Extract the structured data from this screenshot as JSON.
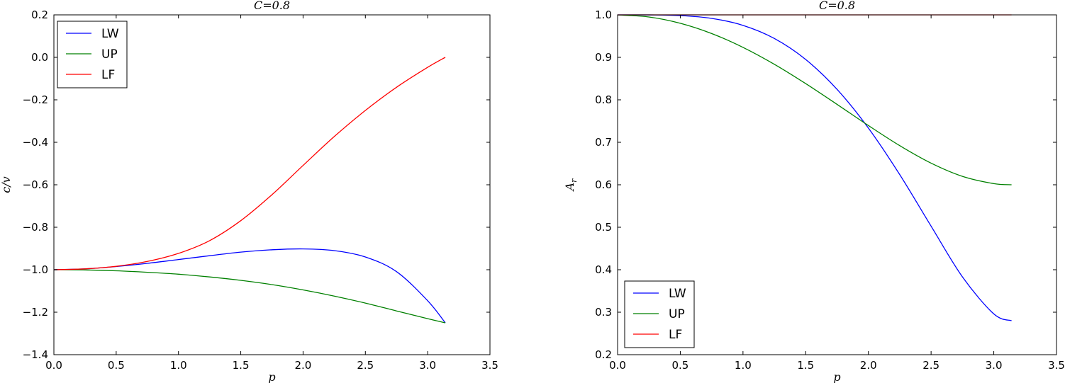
{
  "chart_data": [
    {
      "type": "line",
      "title": "C=0.8",
      "xlabel": "p",
      "ylabel": "c/v",
      "xlim": [
        0,
        3.5
      ],
      "ylim": [
        -1.4,
        0.2
      ],
      "xticks": [
        "0.0",
        "0.5",
        "1.0",
        "1.5",
        "2.0",
        "2.5",
        "3.0",
        "3.5"
      ],
      "yticks": [
        "0.2",
        "0.0",
        "−0.2",
        "−0.4",
        "−0.6",
        "−0.8",
        "−1.0",
        "−1.2",
        "−1.4"
      ],
      "ytick_values": [
        0.2,
        0.0,
        -0.2,
        -0.4,
        -0.6,
        -0.8,
        -1.0,
        -1.2,
        -1.4
      ],
      "grid": false,
      "legend_position": "top-left",
      "x": [
        0,
        0.25,
        0.5,
        0.75,
        1.0,
        1.25,
        1.5,
        1.75,
        2.0,
        2.25,
        2.5,
        2.75,
        3.0,
        3.1416
      ],
      "series": [
        {
          "name": "LW",
          "color": "#0000ff",
          "values": [
            -1.0,
            -0.996,
            -0.985,
            -0.97,
            -0.952,
            -0.934,
            -0.917,
            -0.906,
            -0.902,
            -0.91,
            -0.94,
            -1.009,
            -1.146,
            -1.25
          ]
        },
        {
          "name": "UP",
          "color": "#008000",
          "values": [
            -1.0,
            -1.001,
            -1.005,
            -1.012,
            -1.021,
            -1.034,
            -1.05,
            -1.07,
            -1.095,
            -1.124,
            -1.157,
            -1.194,
            -1.2305,
            -1.25
          ]
        },
        {
          "name": "LF",
          "color": "#ff0000",
          "values": [
            -1.0,
            -0.996,
            -0.984,
            -0.961,
            -0.923,
            -0.863,
            -0.769,
            -0.647,
            -0.509,
            -0.373,
            -0.25,
            -0.141,
            -0.047,
            0.0
          ]
        }
      ]
    },
    {
      "type": "line",
      "title": "C=0.8",
      "xlabel": "p",
      "ylabel": "A_r",
      "xlim": [
        0,
        3.5
      ],
      "ylim": [
        0.2,
        1.0
      ],
      "xticks": [
        "0.0",
        "0.5",
        "1.0",
        "1.5",
        "2.0",
        "2.5",
        "3.0",
        "3.5"
      ],
      "yticks": [
        "1.0",
        "0.9",
        "0.8",
        "0.7",
        "0.6",
        "0.5",
        "0.4",
        "0.3",
        "0.2"
      ],
      "ytick_values": [
        1.0,
        0.9,
        0.8,
        0.7,
        0.6,
        0.5,
        0.4,
        0.3,
        0.2
      ],
      "grid": false,
      "legend_position": "bottom-left",
      "x": [
        0,
        0.25,
        0.5,
        0.75,
        1.0,
        1.25,
        1.5,
        1.75,
        2.0,
        2.25,
        2.5,
        2.75,
        3.0,
        3.1416
      ],
      "series": [
        {
          "name": "LW",
          "color": "#0000ff",
          "values": [
            1.0,
            0.9999,
            0.9983,
            0.9917,
            0.9753,
            0.9445,
            0.895,
            0.8247,
            0.7335,
            0.6239,
            0.5026,
            0.3832,
            0.296,
            0.28
          ]
        },
        {
          "name": "UP",
          "color": "#008000",
          "values": [
            1.0,
            0.995,
            0.9802,
            0.9561,
            0.9235,
            0.8837,
            0.8382,
            0.7893,
            0.7395,
            0.6921,
            0.6509,
            0.6198,
            0.6027,
            0.6
          ]
        },
        {
          "name": "LF",
          "color": "#ff0000",
          "values": [
            1.0,
            1.0,
            1.0,
            1.0,
            1.0,
            1.0,
            1.0,
            1.0,
            1.0,
            1.0,
            1.0,
            1.0,
            1.0,
            1.0
          ]
        }
      ]
    }
  ]
}
